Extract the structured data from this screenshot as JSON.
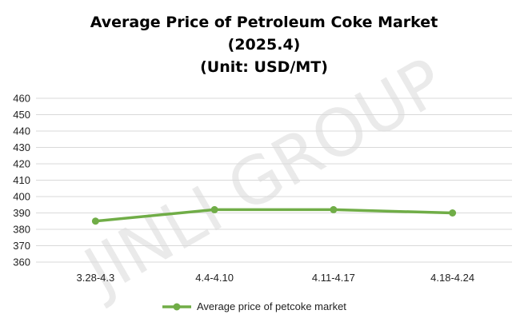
{
  "chart_data": {
    "type": "line",
    "title_lines": [
      "Average Price of Petroleum Coke Market",
      "(2025.4)",
      "(Unit: USD/MT)"
    ],
    "categories": [
      "3.28-4.3",
      "4.4-4.10",
      "4.11-4.17",
      "4.18-4.24"
    ],
    "series": [
      {
        "name": "Average price of petcoke market",
        "values": [
          385,
          392,
          392,
          390
        ],
        "color": "#70ad47"
      }
    ],
    "ylim": [
      360,
      460
    ],
    "yticks": [
      360,
      370,
      380,
      390,
      400,
      410,
      420,
      430,
      440,
      450,
      460
    ],
    "grid": true,
    "legend_position": "bottom"
  },
  "watermark": "JINLI GROUP"
}
